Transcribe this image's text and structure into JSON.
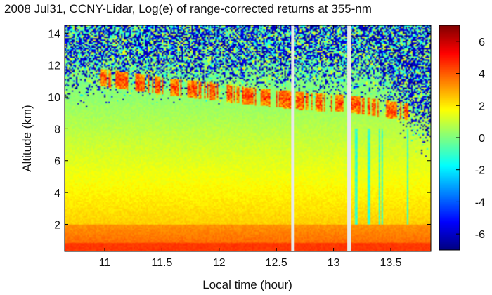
{
  "chart_data": {
    "type": "heatmap",
    "title": "2008 Jul31, CCNY-Lidar, Log(e) of range-corrected returns at 355-nm",
    "xlabel": "Local time (hour)",
    "ylabel": "Altitude (km)",
    "xlim": [
      10.65,
      13.85
    ],
    "ylim": [
      0.3,
      14.5
    ],
    "x_ticks": [
      11,
      11.5,
      12,
      12.5,
      13,
      13.5
    ],
    "x_tick_labels": [
      "11",
      "11.5",
      "12",
      "12.5",
      "13",
      "13.5"
    ],
    "y_ticks": [
      2,
      4,
      6,
      8,
      10,
      12,
      14
    ],
    "y_tick_labels": [
      "2",
      "4",
      "6",
      "8",
      "10",
      "12",
      "14"
    ],
    "colorbar": {
      "colormap": "jet",
      "range": [
        -7,
        7
      ],
      "ticks": [
        6,
        4,
        2,
        0,
        -2,
        -4,
        -6
      ],
      "tick_labels": [
        "6",
        "4",
        "2",
        "0",
        "-2",
        "-4",
        "-6"
      ]
    },
    "data_gaps_hours": [
      [
        12.63,
        12.66
      ],
      [
        13.12,
        13.15
      ]
    ],
    "features": {
      "boundary_layer_top_km": 2.0,
      "surface_layer_value": 4.5,
      "cirrus_layer": {
        "times_hours": [
          11.0,
          11.3,
          11.6,
          11.9,
          12.2,
          12.5,
          12.8,
          13.1,
          13.4,
          13.6
        ],
        "altitude_km": [
          11.2,
          10.9,
          10.6,
          10.4,
          10.1,
          9.9,
          9.7,
          9.6,
          9.3,
          9.1
        ],
        "peak_value": 5.5
      },
      "noise_onset_km": 9.0
    }
  },
  "colors": {
    "background": "#ffffff",
    "gap": "#e8e8e8",
    "frame": "#000000"
  }
}
